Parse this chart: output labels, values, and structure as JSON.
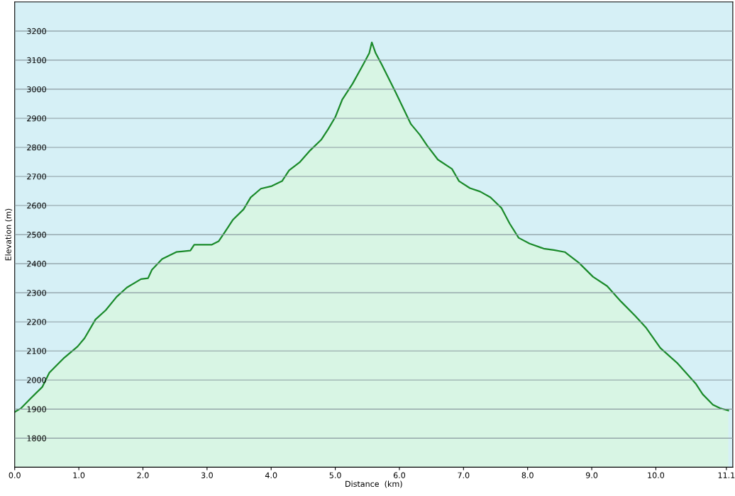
{
  "chart_data": {
    "type": "area",
    "xlabel": "Distance  (km)",
    "ylabel": "Elevation (m)",
    "x": [
      0,
      0.1,
      0.26,
      0.43,
      0.54,
      0.76,
      0.98,
      1.09,
      1.26,
      1.42,
      1.59,
      1.75,
      1.97,
      2.08,
      2.14,
      2.3,
      2.52,
      2.74,
      2.8,
      3.07,
      3.18,
      3.29,
      3.4,
      3.57,
      3.68,
      3.84,
      4.01,
      4.17,
      4.28,
      4.45,
      4.61,
      4.78,
      4.89,
      5.0,
      5.11,
      5.27,
      5.44,
      5.53,
      5.57,
      5.63,
      5.72,
      5.94,
      6.18,
      6.32,
      6.43,
      6.6,
      6.82,
      6.93,
      7.1,
      7.26,
      7.42,
      7.59,
      7.72,
      7.86,
      8.03,
      8.25,
      8.41,
      8.58,
      8.8,
      9.02,
      9.24,
      9.46,
      9.68,
      9.85,
      10.07,
      10.34,
      10.62,
      10.73,
      10.89,
      11.0,
      11.13
    ],
    "series": [
      {
        "color": "#1a8a2a",
        "values": [
          1890,
          1903,
          1939,
          1976,
          2025,
          2074,
          2115,
          2144,
          2208,
          2240,
          2286,
          2318,
          2347,
          2350,
          2379,
          2416,
          2440,
          2445,
          2465,
          2465,
          2477,
          2513,
          2550,
          2587,
          2628,
          2658,
          2667,
          2684,
          2721,
          2750,
          2790,
          2826,
          2863,
          2904,
          2965,
          3019,
          3087,
          3124,
          3161,
          3124,
          3087,
          2990,
          2880,
          2843,
          2807,
          2758,
          2726,
          2684,
          2660,
          2648,
          2628,
          2592,
          2538,
          2489,
          2469,
          2452,
          2447,
          2440,
          2403,
          2355,
          2323,
          2269,
          2220,
          2179,
          2110,
          2057,
          1988,
          1951,
          1915,
          1903,
          1895
        ]
      }
    ],
    "xlim": [
      0,
      11.2
    ],
    "xticks": [
      {
        "value": 0,
        "label": "0.0"
      },
      {
        "value": 1,
        "label": "1.0"
      },
      {
        "value": 2,
        "label": "2.0"
      },
      {
        "value": 3,
        "label": "3.0"
      },
      {
        "value": 4,
        "label": "4.0"
      },
      {
        "value": 5,
        "label": "5.0"
      },
      {
        "value": 6,
        "label": "6.0"
      },
      {
        "value": 7,
        "label": "7.0"
      },
      {
        "value": 8,
        "label": "8.0"
      },
      {
        "value": 9,
        "label": "9.0"
      },
      {
        "value": 10,
        "label": "10.0"
      },
      {
        "value": 11.1,
        "label": "11.1"
      }
    ],
    "ylim": [
      1700,
      3300
    ],
    "yticks": [
      1800,
      1900,
      2000,
      2100,
      2200,
      2300,
      2400,
      2500,
      2600,
      2700,
      2800,
      2900,
      3000,
      3100,
      3200
    ],
    "grid": "y"
  }
}
